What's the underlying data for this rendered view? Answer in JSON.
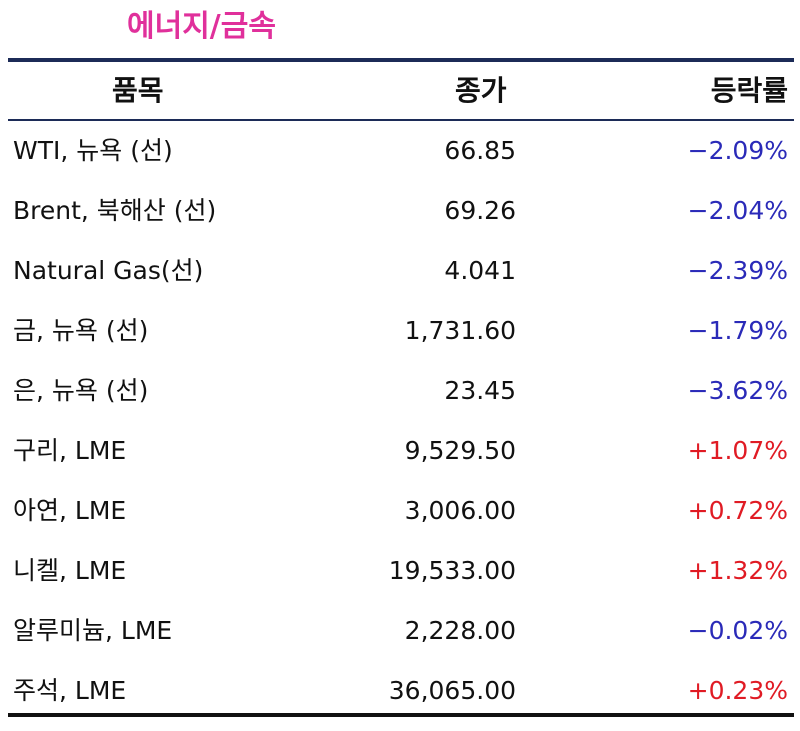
{
  "title": "에너지/금속",
  "header": {
    "item": "품목",
    "close": "종가",
    "change": "등락률"
  },
  "colors": {
    "title": "#e0309b",
    "negative": "#2a2ab8",
    "positive": "#e01b24",
    "rule": "#1c2b57"
  },
  "rows": [
    {
      "item": "WTI, 뉴욕 (선)",
      "close": "66.85",
      "change": "−2.09%",
      "direction": "negative"
    },
    {
      "item": "Brent, 북해산 (선)",
      "close": "69.26",
      "change": "−2.04%",
      "direction": "negative"
    },
    {
      "item": "Natural Gas(선)",
      "close": "4.041",
      "change": "−2.39%",
      "direction": "negative"
    },
    {
      "item": "금, 뉴욕  (선)",
      "close": "1,731.60",
      "change": "−1.79%",
      "direction": "negative"
    },
    {
      "item": "은, 뉴욕  (선)",
      "close": "23.45",
      "change": "−3.62%",
      "direction": "negative"
    },
    {
      "item": "구리, LME",
      "close": "9,529.50",
      "change": "+1.07%",
      "direction": "positive"
    },
    {
      "item": "아연, LME",
      "close": "3,006.00",
      "change": "+0.72%",
      "direction": "positive"
    },
    {
      "item": "니켈, LME",
      "close": "19,533.00",
      "change": "+1.32%",
      "direction": "positive"
    },
    {
      "item": "알루미늄, LME",
      "close": "2,228.00",
      "change": "−0.02%",
      "direction": "negative"
    },
    {
      "item": "주석, LME",
      "close": "36,065.00",
      "change": "+0.23%",
      "direction": "positive"
    }
  ]
}
